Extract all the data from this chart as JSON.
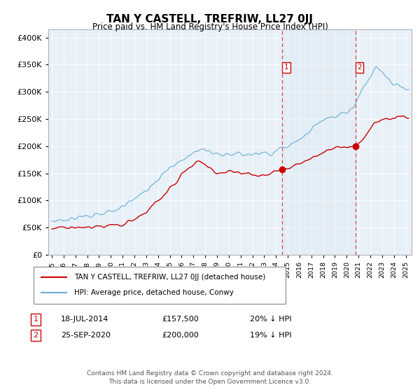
{
  "title": "TAN Y CASTELL, TREFRIW, LL27 0JJ",
  "subtitle": "Price paid vs. HM Land Registry's House Price Index (HPI)",
  "ytick_values": [
    0,
    50000,
    100000,
    150000,
    200000,
    250000,
    300000,
    350000,
    400000
  ],
  "ylim": [
    0,
    415000
  ],
  "xlim_start": 1994.7,
  "xlim_end": 2025.5,
  "hpi_color": "#6baed6",
  "hpi_fill_color": "#daeaf5",
  "price_color": "#cc0000",
  "marker1_x": 2014.54,
  "marker1_y": 157500,
  "marker2_x": 2020.73,
  "marker2_y": 200000,
  "vline1_x": 2014.54,
  "vline2_x": 2020.73,
  "background_color": "#e8f0f8",
  "grid_color": "#ffffff",
  "legend_label_price": "TAN Y CASTELL, TREFRIW, LL27 0JJ (detached house)",
  "legend_label_hpi": "HPI: Average price, detached house, Conwy",
  "annotation1_date": "18-JUL-2014",
  "annotation1_price": "£157,500",
  "annotation1_hpi": "20% ↓ HPI",
  "annotation2_date": "25-SEP-2020",
  "annotation2_price": "£200,000",
  "annotation2_hpi": "19% ↓ HPI",
  "footer": "Contains HM Land Registry data © Crown copyright and database right 2024.\nThis data is licensed under the Open Government Licence v3.0."
}
